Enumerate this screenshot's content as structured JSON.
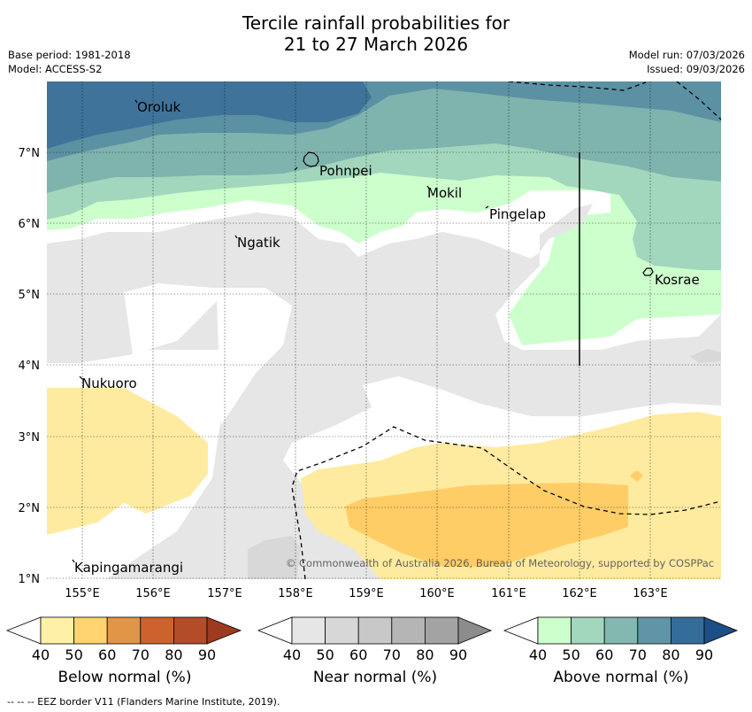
{
  "title": {
    "line1": "Tercile rainfall probabilities for",
    "line2": "21 to 27 March 2026"
  },
  "meta": {
    "base_period": "Base period: 1981-2018",
    "model": "Model: ACCESS-S2",
    "model_run": "Model run: 07/03/2026",
    "issued": "Issued: 09/03/2026"
  },
  "map": {
    "lon_ticks": [
      "155°E",
      "156°E",
      "157°E",
      "158°E",
      "159°E",
      "160°E",
      "161°E",
      "162°E",
      "163°E"
    ],
    "lat_ticks": [
      "7°N",
      "6°N",
      "5°N",
      "4°N",
      "3°N",
      "2°N",
      "1°N"
    ],
    "places": [
      {
        "name": "Oroluk"
      },
      {
        "name": "Pohnpei"
      },
      {
        "name": "Mokil"
      },
      {
        "name": "Pingelap"
      },
      {
        "name": "Ngatik"
      },
      {
        "name": "Kosrae"
      },
      {
        "name": "Nukuoro"
      },
      {
        "name": "Kapingamarangi"
      }
    ],
    "copyright": "© Commonwealth of Australia 2026, Bureau of Meteorology, supported by COSPPac"
  },
  "legends": [
    {
      "label": "Below normal (%)",
      "ticks": [
        "40",
        "50",
        "60",
        "70",
        "80",
        "90"
      ],
      "colors": [
        "#fff0a8",
        "#ffd36e",
        "#e19547",
        "#cc632f",
        "#b34c28",
        "#9e3a1f"
      ]
    },
    {
      "label": "Near normal (%)",
      "ticks": [
        "40",
        "50",
        "60",
        "70",
        "80",
        "90"
      ],
      "colors": [
        "#e6e6e6",
        "#d7d7d7",
        "#c8c8c8",
        "#b5b5b5",
        "#a3a3a3",
        "#8c8c8c"
      ]
    },
    {
      "label": "Above normal (%)",
      "ticks": [
        "40",
        "50",
        "60",
        "70",
        "80",
        "90"
      ],
      "colors": [
        "#ccffcc",
        "#a2d7bd",
        "#82b8b0",
        "#5f95a6",
        "#356d9a",
        "#1b4f86"
      ]
    }
  ],
  "footnote": "--  --  -- EEZ border V11 (Flanders Marine Institute, 2019)."
}
